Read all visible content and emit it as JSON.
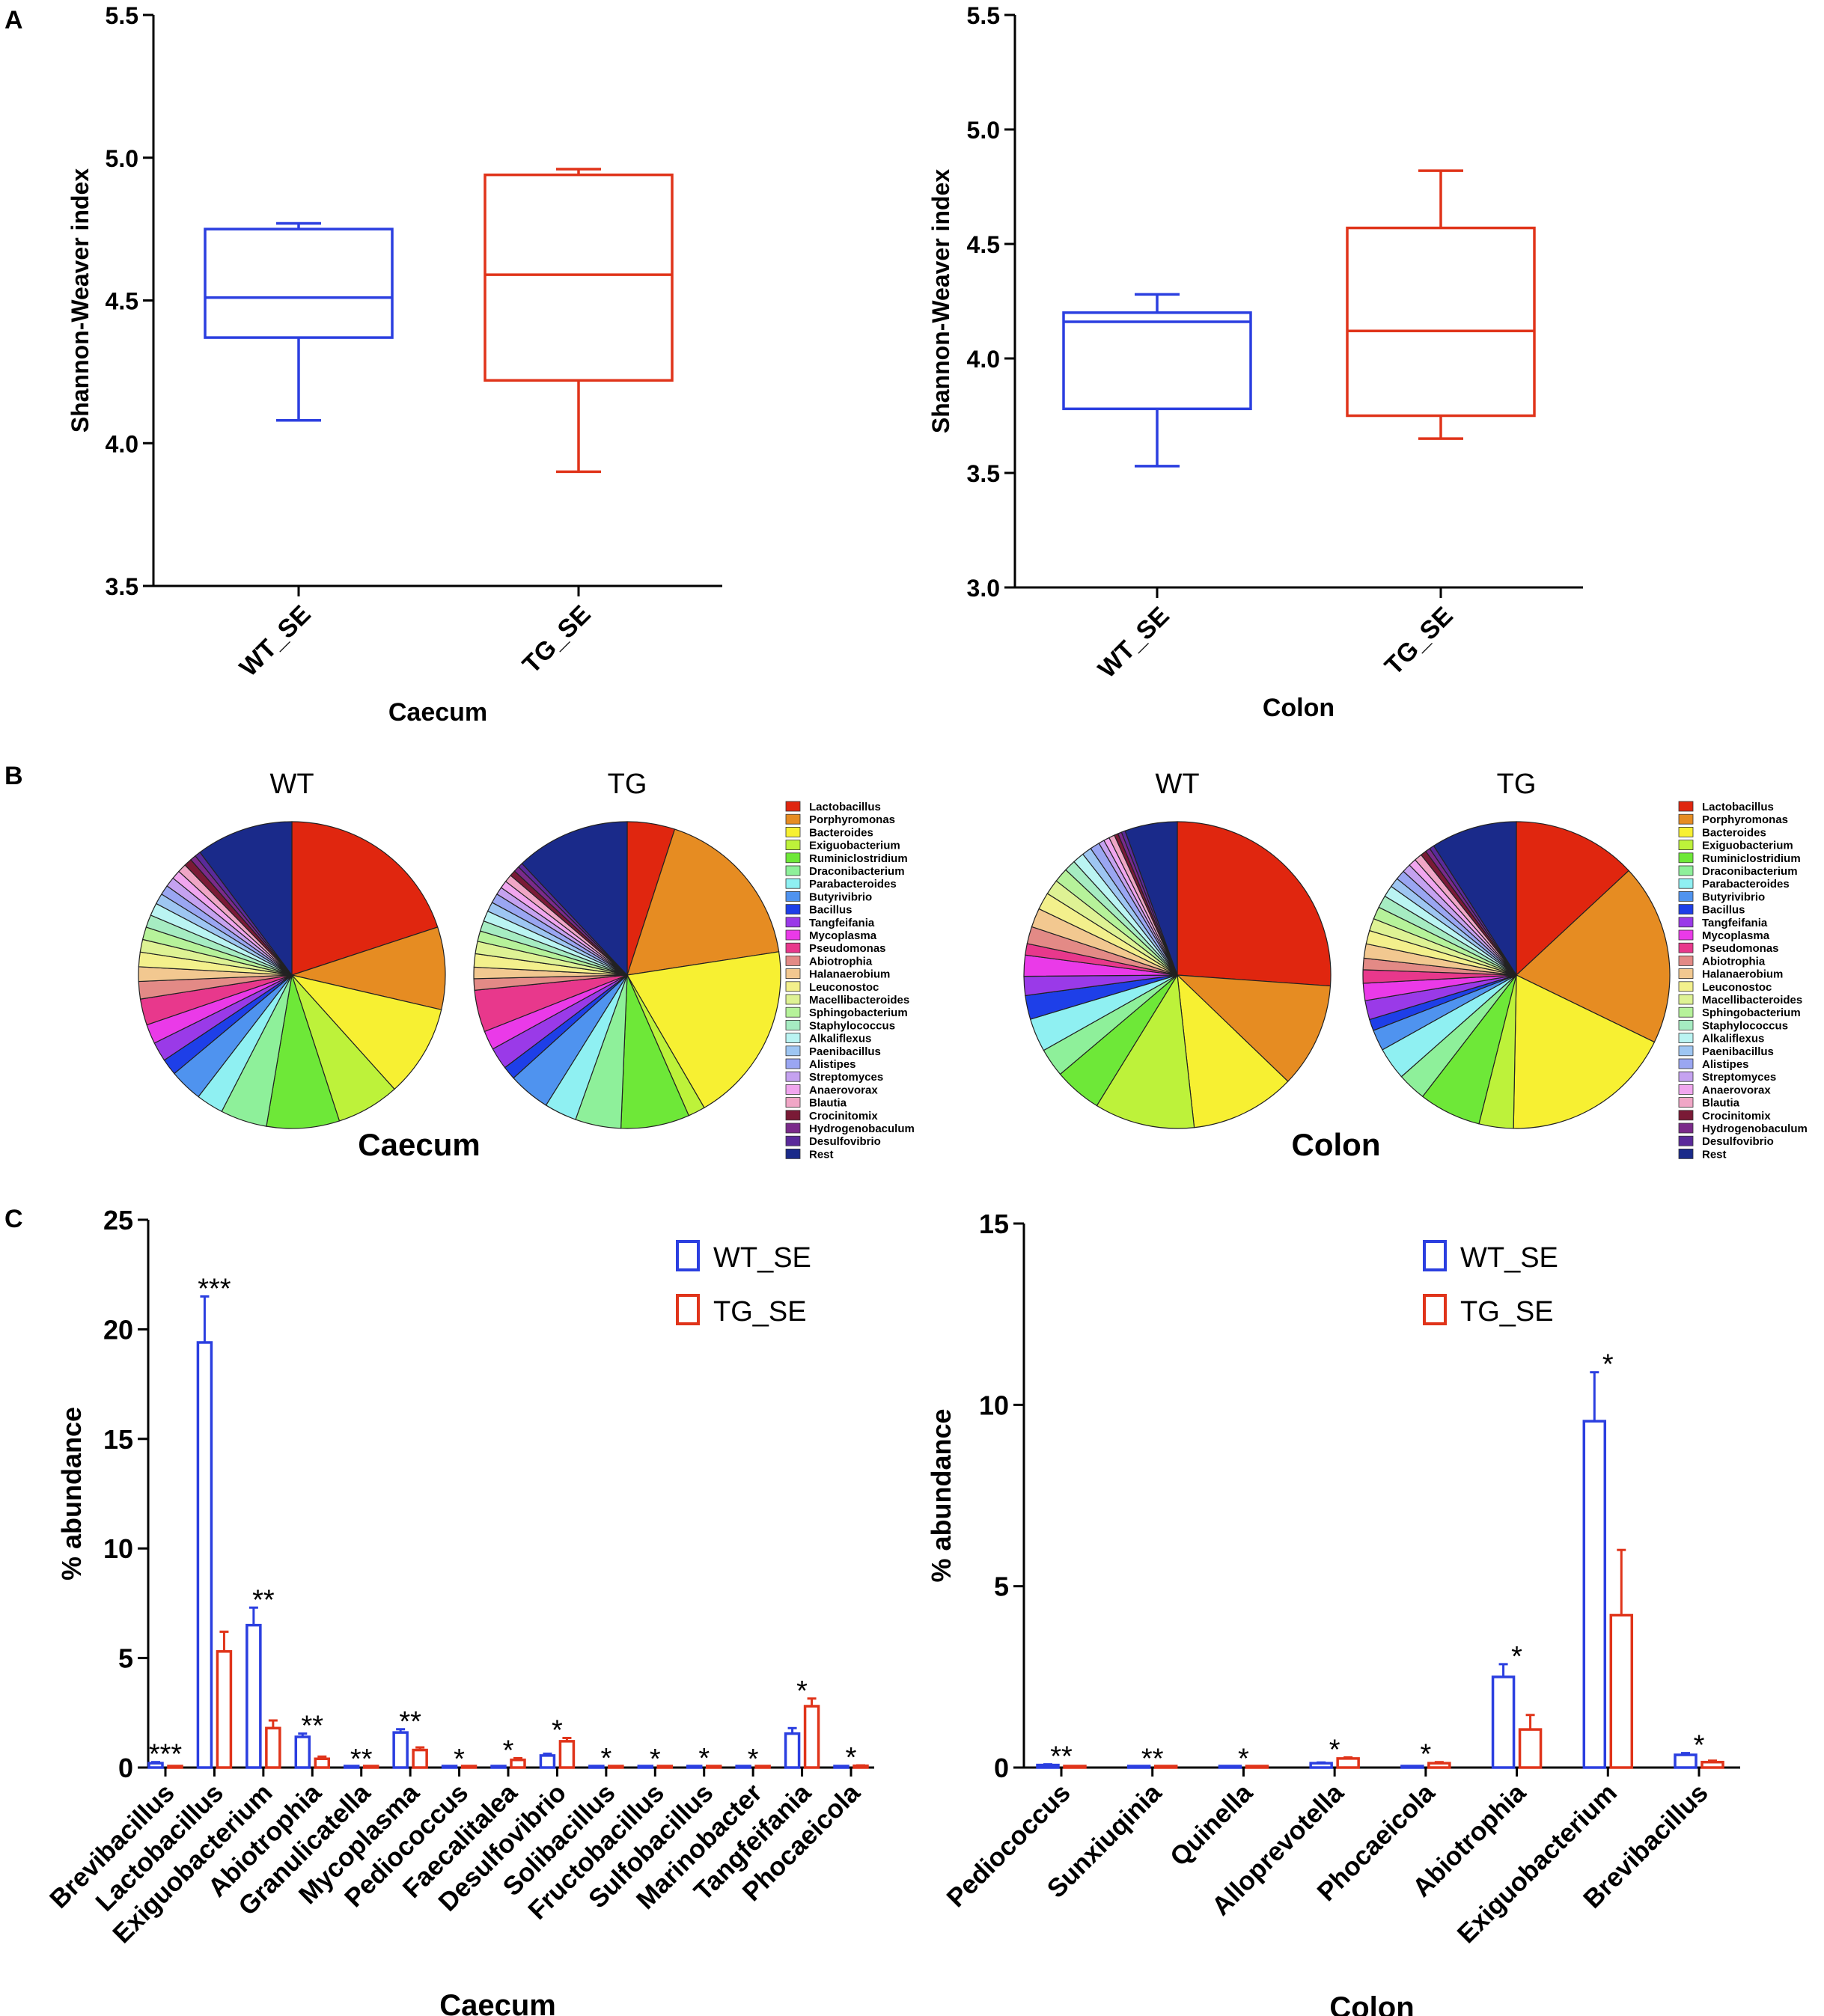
{
  "panel_labels": [
    "A",
    "B",
    "C"
  ],
  "chart_data": [
    {
      "id": "A_caecum",
      "type": "boxplot",
      "ylabel": "Shannon-Weaver index",
      "xlabel": "Caecum",
      "ylim": [
        3.5,
        5.5
      ],
      "yticks": [
        "3.5",
        "4.0",
        "4.5",
        "5.0",
        "5.5"
      ],
      "groups": [
        {
          "name": "WT_SE",
          "color": "#2b3fe0",
          "min": 4.08,
          "q1": 4.37,
          "median": 4.51,
          "q3": 4.75,
          "max": 4.77
        },
        {
          "name": "TG_SE",
          "color": "#e0341a",
          "min": 3.9,
          "q1": 4.22,
          "median": 4.59,
          "q3": 4.94,
          "max": 4.96
        }
      ]
    },
    {
      "id": "A_colon",
      "type": "boxplot",
      "ylabel": "Shannon-Weaver index",
      "xlabel": "Colon",
      "ylim": [
        3.0,
        5.5
      ],
      "yticks": [
        "3.0",
        "3.5",
        "4.0",
        "4.5",
        "5.0",
        "5.5"
      ],
      "groups": [
        {
          "name": "WT_SE",
          "color": "#2b3fe0",
          "min": 3.53,
          "q1": 3.78,
          "median": 4.16,
          "q3": 4.2,
          "max": 4.28
        },
        {
          "name": "TG_SE",
          "color": "#e0341a",
          "min": 3.65,
          "q1": 3.75,
          "median": 4.12,
          "q3": 4.57,
          "max": 4.82
        }
      ]
    },
    {
      "id": "B_pies",
      "type": "pie",
      "genera": [
        {
          "name": "Lactobacillus",
          "color": "#e0260f"
        },
        {
          "name": "Porphyromonas",
          "color": "#e68c22"
        },
        {
          "name": "Bacteroides",
          "color": "#f7f032"
        },
        {
          "name": "Exiguobacterium",
          "color": "#bdf23a"
        },
        {
          "name": "Ruminiclostridium",
          "color": "#6ee838"
        },
        {
          "name": "Draconibacterium",
          "color": "#8ef09a"
        },
        {
          "name": "Parabacteroides",
          "color": "#8ff0f2"
        },
        {
          "name": "Butyrivibrio",
          "color": "#4f93ef"
        },
        {
          "name": "Bacillus",
          "color": "#1e3fe8"
        },
        {
          "name": "Tangfeifania",
          "color": "#9a3ae8"
        },
        {
          "name": "Mycoplasma",
          "color": "#ea3ae8"
        },
        {
          "name": "Pseudomonas",
          "color": "#e8388c"
        },
        {
          "name": "Abiotrophia",
          "color": "#e38a86"
        },
        {
          "name": "Halanaerobium",
          "color": "#f2c890"
        },
        {
          "name": "Leuconostoc",
          "color": "#f3f08c"
        },
        {
          "name": "Macellibacteroides",
          "color": "#def294"
        },
        {
          "name": "Sphingobacterium",
          "color": "#b6f29a"
        },
        {
          "name": "Staphylococcus",
          "color": "#a6ecc2"
        },
        {
          "name": "Alkaliflexus",
          "color": "#baf4f2"
        },
        {
          "name": "Paenibacillus",
          "color": "#9ec6f2"
        },
        {
          "name": "Alistipes",
          "color": "#9aa6f2"
        },
        {
          "name": "Streptomyces",
          "color": "#c5a2f0"
        },
        {
          "name": "Anaerovorax",
          "color": "#f0a6ee"
        },
        {
          "name": "Blautia",
          "color": "#f0a6c6"
        },
        {
          "name": "Crocinitomix",
          "color": "#7a1a36"
        },
        {
          "name": "Hydrogenobaculum",
          "color": "#7a2a8a"
        },
        {
          "name": "Desulfovibrio",
          "color": "#5a2a9a"
        },
        {
          "name": "Rest",
          "color": "#1a2a8a"
        }
      ],
      "pies": [
        {
          "title": "WT",
          "site": "Caecum",
          "values": [
            19.5,
            8.5,
            9.5,
            6.5,
            7.5,
            4.8,
            2.8,
            3.4,
            1.7,
            2.0,
            2.0,
            2.7,
            1.8,
            1.5,
            1.5,
            1.3,
            1.3,
            1.3,
            1.3,
            1.1,
            1.0,
            1.0,
            0.9,
            0.9,
            0.8,
            0.6,
            0.6,
            10.0
          ]
        },
        {
          "title": "TG",
          "site": "Caecum",
          "values": [
            5.0,
            17.5,
            19.0,
            1.8,
            7.2,
            4.8,
            3.4,
            4.4,
            1.4,
            2.3,
            2.0,
            4.4,
            1.2,
            1.2,
            1.4,
            1.3,
            1.1,
            1.1,
            1.1,
            1.0,
            1.0,
            0.8,
            0.8,
            0.8,
            0.6,
            0.6,
            0.5,
            12.0
          ]
        },
        {
          "title": "WT",
          "site": "Colon",
          "values": [
            26.0,
            11.0,
            11.0,
            10.5,
            5.0,
            3.0,
            3.5,
            0.0,
            2.5,
            2.0,
            2.2,
            1.2,
            1.8,
            2.0,
            1.8,
            1.6,
            1.5,
            1.2,
            1.2,
            1.0,
            1.0,
            0.6,
            0.6,
            0.6,
            0.4,
            0.4,
            0.4,
            5.5
          ]
        },
        {
          "title": "TG",
          "site": "Colon",
          "values": [
            13.0,
            19.0,
            18.0,
            3.6,
            6.5,
            3.0,
            3.4,
            2.2,
            1.2,
            2.0,
            1.8,
            1.4,
            1.2,
            1.5,
            1.4,
            1.3,
            1.3,
            1.3,
            1.2,
            1.0,
            1.0,
            0.9,
            0.8,
            0.8,
            0.6,
            0.5,
            0.5,
            9.0
          ]
        }
      ],
      "site_labels": [
        "Caecum",
        "Colon"
      ]
    },
    {
      "id": "C_caecum",
      "type": "bar",
      "ylabel": "% abundance",
      "xlabel": "Caecum",
      "ylim": [
        0,
        25
      ],
      "yticks": [
        "0",
        "5",
        "10",
        "15",
        "20",
        "25"
      ],
      "legend": [
        "WT_SE",
        "TG_SE"
      ],
      "legend_position": "top-right",
      "categories": [
        "Brevibacillus",
        "Lactobacillus",
        "Exiguobacterium",
        "Abiotrophia",
        "Granulicatella",
        "Mycoplasma",
        "Pediococcus",
        "Faecalitalea",
        "Desulfovibrio",
        "Solibacillus",
        "Fructobacillus",
        "Sulfobacillus",
        "Marinobacter",
        "Tangfeifania",
        "Phocaeicola"
      ],
      "series": [
        {
          "name": "WT_SE",
          "color": "#2b3fe0",
          "values": [
            0.2,
            19.4,
            6.5,
            1.4,
            0.02,
            1.6,
            0.02,
            0.02,
            0.55,
            0.05,
            0.02,
            0.05,
            0.02,
            1.55,
            0.02
          ],
          "errors": [
            0.05,
            2.1,
            0.8,
            0.15,
            0.01,
            0.15,
            0.01,
            0.01,
            0.08,
            0.02,
            0.01,
            0.02,
            0.01,
            0.25,
            0.01
          ]
        },
        {
          "name": "TG_SE",
          "color": "#e0341a",
          "values": [
            0.05,
            5.3,
            1.8,
            0.4,
            0.01,
            0.8,
            0.01,
            0.35,
            1.2,
            0.01,
            0.01,
            0.01,
            0.01,
            2.8,
            0.08
          ],
          "errors": [
            0.02,
            0.9,
            0.35,
            0.1,
            0.01,
            0.12,
            0.01,
            0.08,
            0.15,
            0.01,
            0.01,
            0.01,
            0.01,
            0.35,
            0.02
          ]
        }
      ],
      "significance": [
        "***",
        "***",
        "**",
        "**",
        "**",
        "**",
        "*",
        "*",
        "*",
        "*",
        "*",
        "*",
        "*",
        "*",
        "*"
      ]
    },
    {
      "id": "C_colon",
      "type": "bar",
      "ylabel": "% abundance",
      "xlabel": "Colon",
      "ylim": [
        0,
        15
      ],
      "yticks": [
        "0",
        "5",
        "10",
        "15"
      ],
      "legend": [
        "WT_SE",
        "TG_SE"
      ],
      "legend_position": "top-right",
      "categories": [
        "Pediococcus",
        "Sunxiuqinia",
        "Quinella",
        "Alloprevotella",
        "Phocaeicola",
        "Abiotrophia",
        "Exiguobacterium",
        "Brevibacillus"
      ],
      "series": [
        {
          "name": "WT_SE",
          "color": "#2b3fe0",
          "values": [
            0.07,
            0.02,
            0.02,
            0.12,
            0.03,
            2.5,
            9.55,
            0.35
          ],
          "errors": [
            0.02,
            0.01,
            0.01,
            0.02,
            0.01,
            0.35,
            1.35,
            0.05
          ]
        },
        {
          "name": "TG_SE",
          "color": "#e0341a",
          "values": [
            0.02,
            0.01,
            0.01,
            0.25,
            0.12,
            1.05,
            4.2,
            0.15
          ],
          "errors": [
            0.01,
            0.01,
            0.01,
            0.03,
            0.03,
            0.4,
            1.8,
            0.04
          ]
        }
      ],
      "significance": [
        "**",
        "**",
        "*",
        "*",
        "*",
        "*",
        "*",
        "*"
      ]
    }
  ]
}
